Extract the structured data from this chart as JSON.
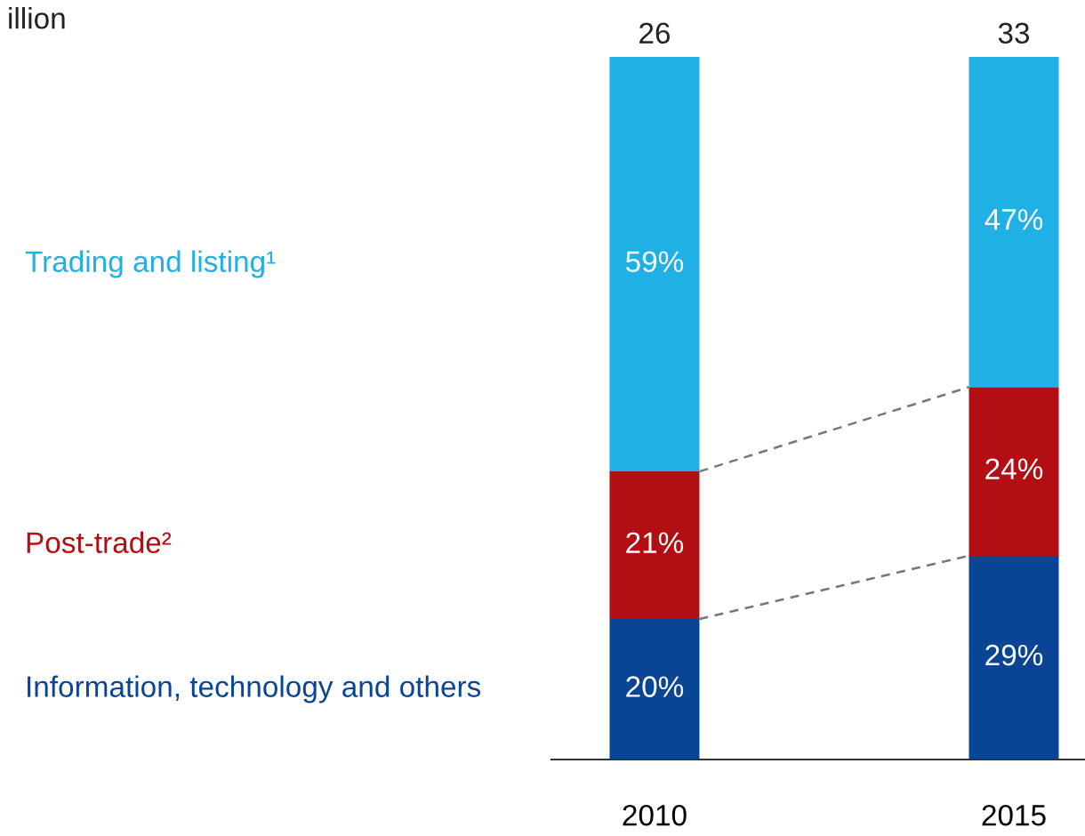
{
  "chart_data": {
    "type": "bar",
    "stacked": true,
    "categories": [
      "2010",
      "2015"
    ],
    "series": [
      {
        "name": "Information, technology and others",
        "color": "#0a4595",
        "values": [
          20,
          29
        ],
        "value_labels": [
          "20%",
          "29%"
        ]
      },
      {
        "name": "Post-trade²",
        "color": "#b20e13",
        "values": [
          21,
          24
        ],
        "value_labels": [
          "21%",
          "24%"
        ]
      },
      {
        "name": "Trading and listing¹",
        "color": "#1fb0e6",
        "values": [
          59,
          47
        ],
        "value_labels": [
          "59%",
          "47%"
        ]
      }
    ],
    "annotations": [
      "illion",
      {
        "text": "26",
        "x": "2010",
        "y": 100
      },
      {
        "text": "33",
        "x": "2015",
        "y": 100
      }
    ],
    "grid": false,
    "legend": false
  }
}
